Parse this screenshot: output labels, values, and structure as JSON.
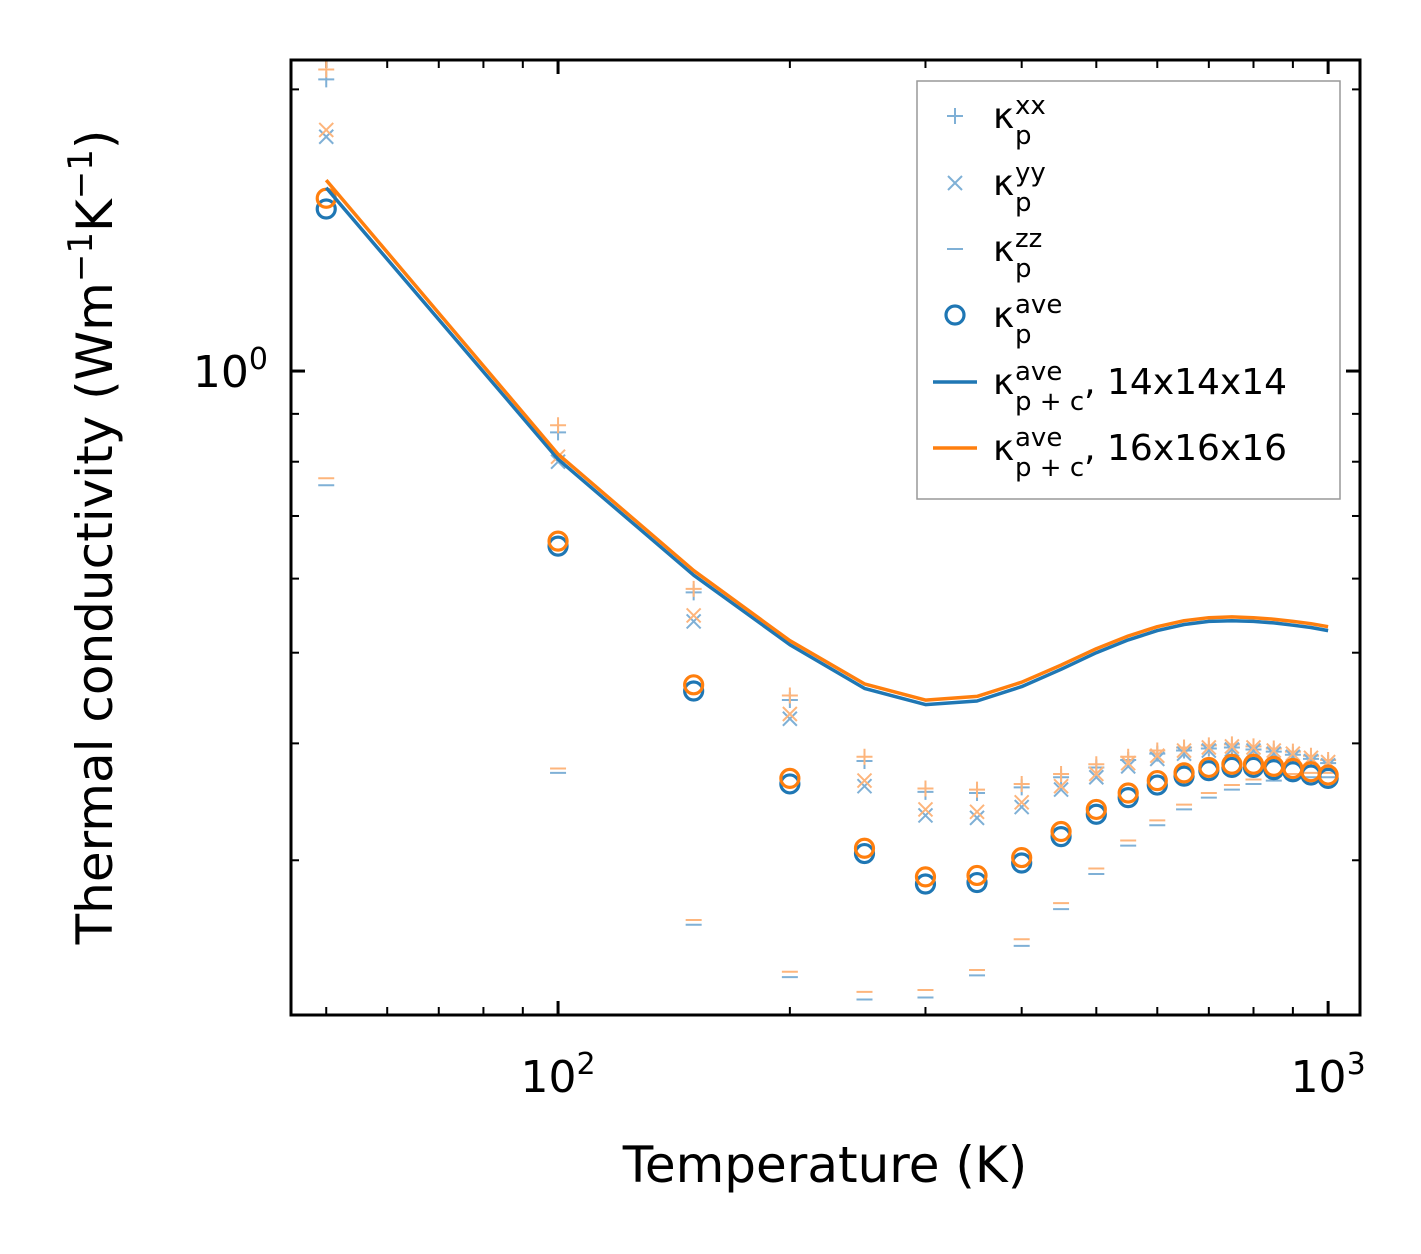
{
  "chart_data": {
    "type": "scatter",
    "xscale": "log",
    "yscale": "log",
    "xlabel": "Temperature (K)",
    "ylabel_main": "Thermal conductivity (Wm",
    "ylabel_exp1": "−1",
    "ylabel_mid": "K",
    "ylabel_exp2": "−1",
    "ylabel_end": ")",
    "xlim": [
      45,
      1100
    ],
    "ylim": [
      0.205,
      2.15
    ],
    "x_ticks": [
      {
        "value": 100,
        "base": "10",
        "exp": "2"
      },
      {
        "value": 1000,
        "base": "10",
        "exp": "3"
      }
    ],
    "y_ticks": [
      {
        "value": 1,
        "base": "10",
        "exp": "0"
      }
    ],
    "x": [
      50,
      100,
      150,
      200,
      250,
      300,
      350,
      400,
      450,
      500,
      550,
      600,
      650,
      700,
      750,
      800,
      850,
      900,
      950,
      1000
    ],
    "series": [
      {
        "name": "κ_p^xx (14x14x14)",
        "marker": "plus",
        "color": "#7fb0d6",
        "values": [
          2.05,
          0.86,
          0.58,
          0.445,
          0.383,
          0.355,
          0.354,
          0.359,
          0.368,
          0.377,
          0.384,
          0.39,
          0.393,
          0.395,
          0.396,
          0.394,
          0.392,
          0.389,
          0.385,
          0.381
        ]
      },
      {
        "name": "κ_p^xx (16x16x16)",
        "marker": "plus",
        "color": "#fdb57c",
        "values": [
          2.1,
          0.875,
          0.585,
          0.45,
          0.387,
          0.358,
          0.357,
          0.362,
          0.371,
          0.38,
          0.387,
          0.393,
          0.396,
          0.398,
          0.399,
          0.397,
          0.395,
          0.392,
          0.388,
          0.384
        ]
      },
      {
        "name": "κ_p^yy (14x14x14)",
        "marker": "x",
        "color": "#7fb0d6",
        "values": [
          1.78,
          0.8,
          0.54,
          0.425,
          0.36,
          0.335,
          0.333,
          0.342,
          0.357,
          0.368,
          0.378,
          0.385,
          0.39,
          0.393,
          0.394,
          0.393,
          0.39,
          0.387,
          0.383,
          0.379
        ]
      },
      {
        "name": "κ_p^yy (16x16x16)",
        "marker": "x",
        "color": "#fdb57c",
        "values": [
          1.81,
          0.81,
          0.548,
          0.43,
          0.365,
          0.34,
          0.338,
          0.346,
          0.36,
          0.371,
          0.381,
          0.388,
          0.393,
          0.396,
          0.397,
          0.396,
          0.393,
          0.39,
          0.386,
          0.382
        ]
      },
      {
        "name": "κ_p^zz (14x14x14)",
        "marker": "hline",
        "color": "#7fb0d6",
        "values": [
          0.755,
          0.372,
          0.256,
          0.225,
          0.213,
          0.214,
          0.226,
          0.243,
          0.266,
          0.29,
          0.311,
          0.327,
          0.34,
          0.35,
          0.357,
          0.362,
          0.365,
          0.367,
          0.368,
          0.368
        ]
      },
      {
        "name": "κ_p^zz (16x16x16)",
        "marker": "hline",
        "color": "#fdb57c",
        "values": [
          0.768,
          0.376,
          0.259,
          0.228,
          0.217,
          0.218,
          0.229,
          0.247,
          0.27,
          0.294,
          0.315,
          0.331,
          0.344,
          0.354,
          0.361,
          0.366,
          0.369,
          0.371,
          0.372,
          0.372
        ]
      },
      {
        "name": "κ_p^ave (14x14x14)",
        "marker": "circle",
        "color": "#1f77b4",
        "values": [
          1.49,
          0.65,
          0.455,
          0.362,
          0.305,
          0.283,
          0.284,
          0.298,
          0.318,
          0.336,
          0.35,
          0.361,
          0.369,
          0.374,
          0.377,
          0.377,
          0.375,
          0.373,
          0.37,
          0.367
        ]
      },
      {
        "name": "κ_p^ave (16x16x16)",
        "marker": "circle",
        "color": "#ff7f0e",
        "values": [
          1.53,
          0.658,
          0.462,
          0.367,
          0.309,
          0.288,
          0.289,
          0.302,
          0.322,
          0.34,
          0.354,
          0.365,
          0.372,
          0.377,
          0.38,
          0.38,
          0.378,
          0.376,
          0.373,
          0.37
        ]
      },
      {
        "name": "κ_p+c^ave, 14x14x14",
        "marker": "line",
        "color": "#1f77b4",
        "values": [
          1.57,
          0.805,
          0.605,
          0.51,
          0.458,
          0.44,
          0.444,
          0.46,
          0.48,
          0.5,
          0.516,
          0.528,
          0.536,
          0.54,
          0.541,
          0.54,
          0.538,
          0.535,
          0.532,
          0.528
        ]
      },
      {
        "name": "κ_p+c^ave, 16x16x16",
        "marker": "line",
        "color": "#ff7f0e",
        "values": [
          1.6,
          0.815,
          0.612,
          0.515,
          0.463,
          0.445,
          0.449,
          0.465,
          0.485,
          0.505,
          0.521,
          0.533,
          0.541,
          0.545,
          0.546,
          0.545,
          0.543,
          0.54,
          0.537,
          0.533
        ]
      }
    ],
    "legend": {
      "position": "top-right",
      "entries": [
        {
          "marker": "plus",
          "color": "#7fb0d6",
          "base": "κ",
          "sup": "xx",
          "sub": "p",
          "suffix": ""
        },
        {
          "marker": "x",
          "color": "#7fb0d6",
          "base": "κ",
          "sup": "yy",
          "sub": "p",
          "suffix": ""
        },
        {
          "marker": "hline",
          "color": "#7fb0d6",
          "base": "κ",
          "sup": "zz",
          "sub": "p",
          "suffix": ""
        },
        {
          "marker": "circle",
          "color": "#1f77b4",
          "base": "κ",
          "sup": "ave",
          "sub": "p",
          "suffix": ""
        },
        {
          "marker": "line",
          "color": "#1f77b4",
          "base": "κ",
          "sup": "ave",
          "sub": "p + c",
          "suffix": ", 14x14x14"
        },
        {
          "marker": "line",
          "color": "#ff7f0e",
          "base": "κ",
          "sup": "ave",
          "sub": "p + c",
          "suffix": ", 16x16x16"
        }
      ]
    }
  }
}
